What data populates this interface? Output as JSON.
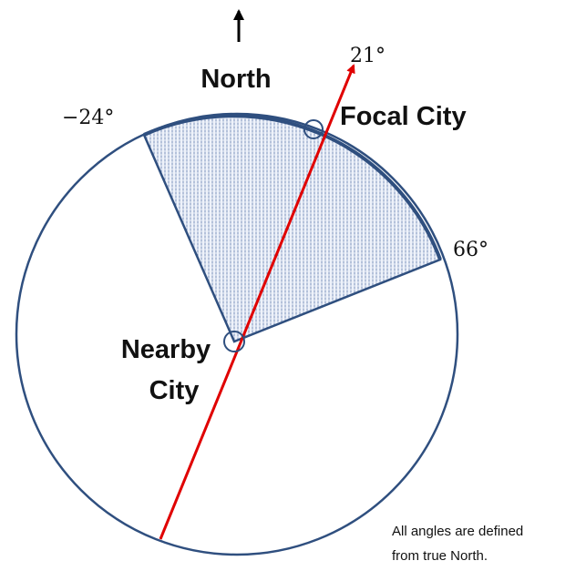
{
  "labels": {
    "north": "North",
    "focal_city": "Focal City",
    "nearby_city": [
      "Nearby",
      "City"
    ]
  },
  "angles": {
    "left": "−24°",
    "direction": "21°",
    "right": "66°"
  },
  "note": [
    "All angles are defined",
    "from true North."
  ]
}
